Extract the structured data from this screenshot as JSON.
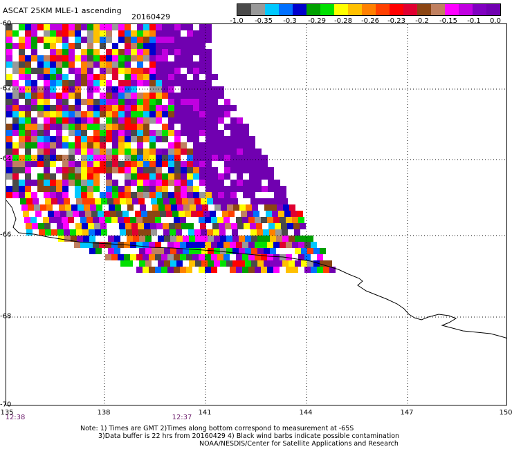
{
  "title": "ASCAT 25KM MLE-1 ascending",
  "date": "20160429",
  "colorbar": {
    "colors": [
      "#4a4a4a",
      "#999999",
      "#00c8ff",
      "#0070ff",
      "#0000cc",
      "#00a000",
      "#00e000",
      "#ffff00",
      "#ffc000",
      "#ff8000",
      "#ff4000",
      "#ff0000",
      "#e00030",
      "#8b4513",
      "#c08060",
      "#ff00ff",
      "#c000e0",
      "#8000c0",
      "#7000b0"
    ],
    "labels": [
      "-1.0",
      "-0.35",
      "-0.3",
      "-0.29",
      "-0.28",
      "-0.26",
      "-0.23",
      "-0.2",
      "-0.15",
      "-0.1",
      "0.0"
    ]
  },
  "map": {
    "lat_labels": [
      "-60",
      "-62",
      "-64",
      "-66",
      "-68",
      "-70"
    ],
    "lon_labels": [
      "135",
      "138",
      "141",
      "144",
      "147",
      "150"
    ],
    "time_labels": [
      "12:38",
      "12:37"
    ]
  },
  "notes": {
    "line1": "Note: 1) Times are GMT 2)Times along bottom correspond to measurement at -65S",
    "line2": "3)Data buffer is 22 hrs from 20160429 4) Black wind barbs indicate possible contamination",
    "line3": "NOAA/NESDIS/Center for Satellite Applications and Research"
  }
}
